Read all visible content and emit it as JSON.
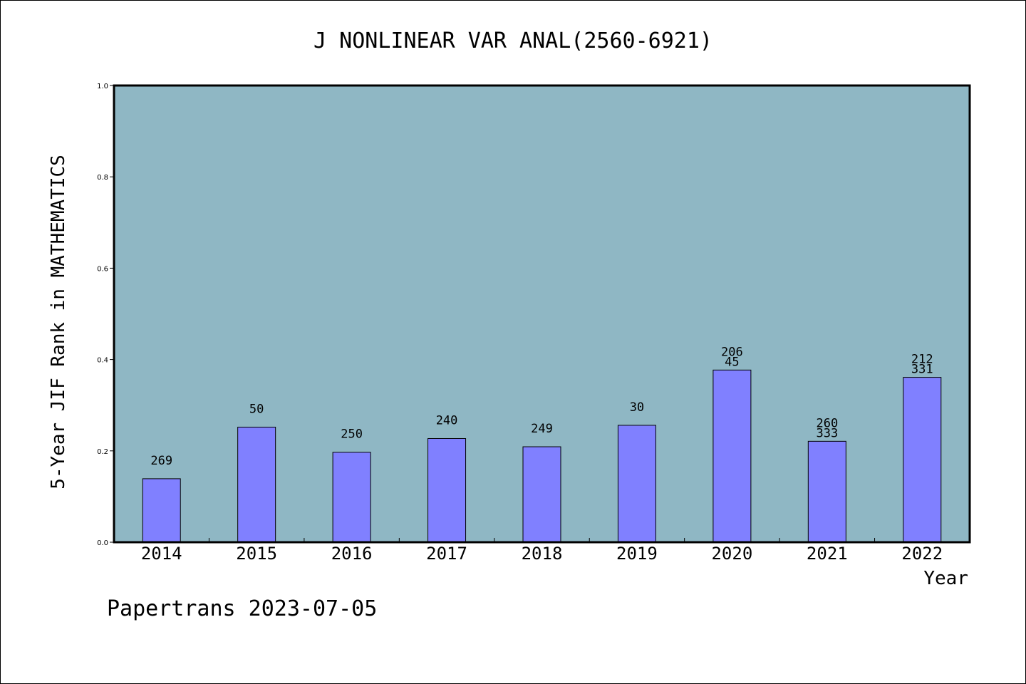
{
  "chart_data": {
    "type": "bar",
    "title": "J NONLINEAR VAR ANAL(2560-6921)",
    "ylabel": "5-Year JIF Rank in MATHEMATICS",
    "xlabel": "Year",
    "ylim": [
      0,
      1.0
    ],
    "yticks": [
      "0.0",
      "0.2",
      "0.4",
      "0.6",
      "0.8",
      "1.0"
    ],
    "ytick_values": [
      0,
      0.2,
      0.4,
      0.6,
      0.8,
      1.0
    ],
    "categories": [
      "2014",
      "2015",
      "2016",
      "2017",
      "2018",
      "2019",
      "2020",
      "2021",
      "2022"
    ],
    "values": [
      0.139,
      0.252,
      0.197,
      0.227,
      0.209,
      0.256,
      0.377,
      0.221,
      0.361
    ],
    "labels": [
      [
        "269"
      ],
      [
        "50"
      ],
      [
        "250"
      ],
      [
        "240"
      ],
      [
        "249"
      ],
      [
        "30"
      ],
      [
        "206",
        "45"
      ],
      [
        "260",
        "333"
      ],
      [
        "212",
        "331"
      ]
    ],
    "grid": false,
    "plot_background": "#8fb7c4",
    "bar_color": "#8080ff"
  },
  "credit": "Papertrans 2023-07-05"
}
